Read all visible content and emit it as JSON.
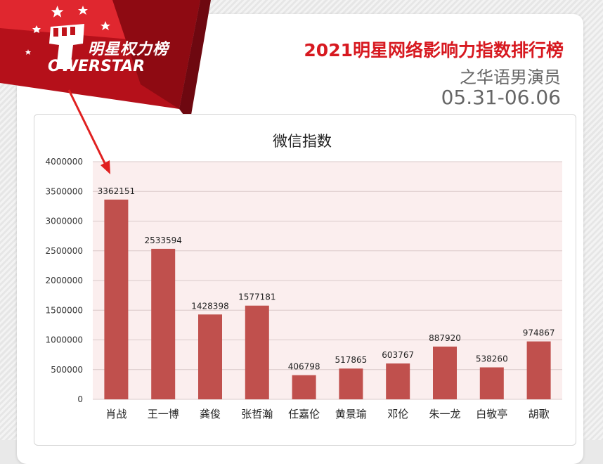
{
  "brand": {
    "logo_text": "明星权力榜",
    "logo_sub": "OWERSTAR"
  },
  "header": {
    "title": "2021明星网络影响力指数排行榜",
    "subtitle": "之华语男演员",
    "date_range": "05.31-06.06"
  },
  "colors": {
    "accent": "#d71920",
    "bar": "#c0504d",
    "plot_bg": "#fbeeee",
    "text": "#333333"
  },
  "chart_data": {
    "type": "bar",
    "title": "微信指数",
    "xlabel": "",
    "ylabel": "",
    "categories": [
      "肖战",
      "王一博",
      "龚俊",
      "张哲瀚",
      "任嘉伦",
      "黄景瑜",
      "邓伦",
      "朱一龙",
      "白敬亭",
      "胡歌"
    ],
    "values": [
      3362151,
      2533594,
      1428398,
      1577181,
      406798,
      517865,
      603767,
      887920,
      538260,
      974867
    ],
    "ylim": [
      0,
      4000000
    ],
    "yticks": [
      0,
      500000,
      1000000,
      1500000,
      2000000,
      2500000,
      3000000,
      3500000,
      4000000
    ],
    "grid": true,
    "legend": "none"
  }
}
